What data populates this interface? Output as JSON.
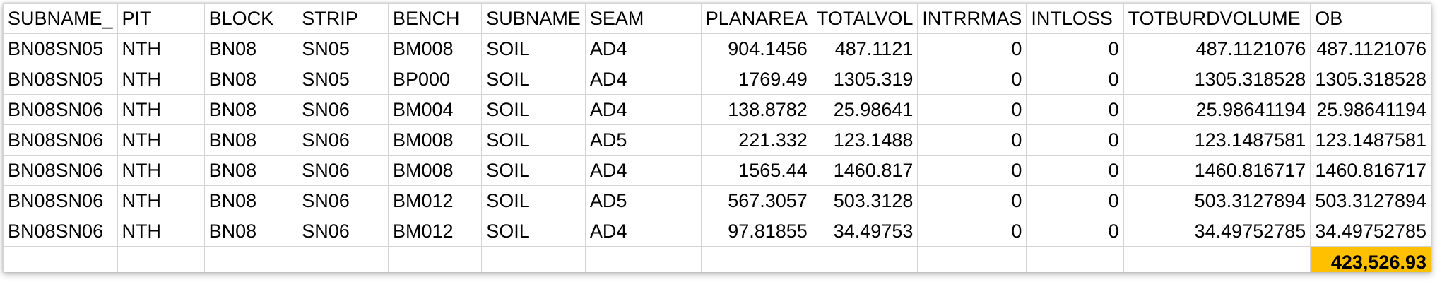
{
  "sheet": {
    "headers": [
      "SUBNAME_",
      "PIT",
      "BLOCK",
      "STRIP",
      "BENCH",
      "SUBNAME",
      "SEAM",
      "PLANAREA",
      "TOTALVOL",
      "INTRRMAS",
      "INTLOSS",
      "TOTBURDVOLUME",
      "OB"
    ],
    "rows": [
      [
        "BN08SN05",
        "NTH",
        "BN08",
        "SN05",
        "BM008",
        "SOIL",
        "AD4",
        "904.1456",
        "487.1121",
        "0",
        "0",
        "487.1121076",
        "487.1121076"
      ],
      [
        "BN08SN05",
        "NTH",
        "BN08",
        "SN05",
        "BP000",
        "SOIL",
        "AD4",
        "1769.49",
        "1305.319",
        "0",
        "0",
        "1305.318528",
        "1305.318528"
      ],
      [
        "BN08SN06",
        "NTH",
        "BN08",
        "SN06",
        "BM004",
        "SOIL",
        "AD4",
        "138.8782",
        "25.98641",
        "0",
        "0",
        "25.98641194",
        "25.98641194"
      ],
      [
        "BN08SN06",
        "NTH",
        "BN08",
        "SN06",
        "BM008",
        "SOIL",
        "AD5",
        "221.332",
        "123.1488",
        "0",
        "0",
        "123.1487581",
        "123.1487581"
      ],
      [
        "BN08SN06",
        "NTH",
        "BN08",
        "SN06",
        "BM008",
        "SOIL",
        "AD4",
        "1565.44",
        "1460.817",
        "0",
        "0",
        "1460.816717",
        "1460.816717"
      ],
      [
        "BN08SN06",
        "NTH",
        "BN08",
        "SN06",
        "BM012",
        "SOIL",
        "AD5",
        "567.3057",
        "503.3128",
        "0",
        "0",
        "503.3127894",
        "503.3127894"
      ],
      [
        "BN08SN06",
        "NTH",
        "BN08",
        "SN06",
        "BM012",
        "SOIL",
        "AD4",
        "97.81855",
        "34.49753",
        "0",
        "0",
        "34.49752785",
        "34.49752785"
      ]
    ],
    "numeric_columns": [
      7,
      8,
      9,
      10,
      11,
      12
    ],
    "total": "423,526.93",
    "total_highlight_color": "#ffc000",
    "gridline_color": "#d4d4d4"
  }
}
